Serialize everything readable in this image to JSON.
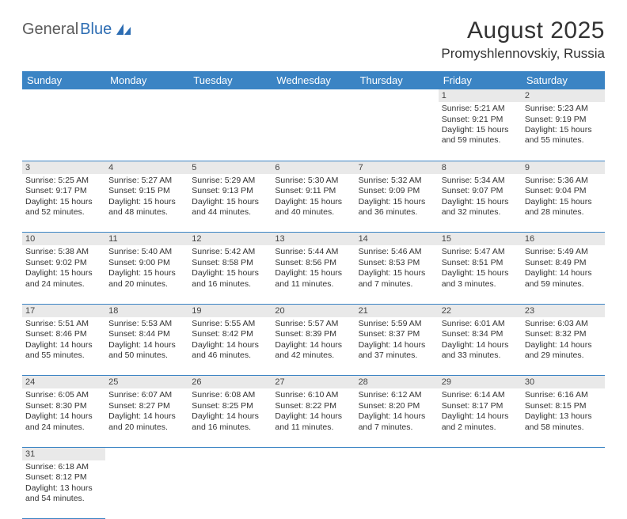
{
  "logo": {
    "part1": "General",
    "part2": "Blue"
  },
  "title": "August 2025",
  "location": "Promyshlennovskiy, Russia",
  "colors": {
    "header_bg": "#3b84c4",
    "header_fg": "#ffffff",
    "daynum_bg": "#e9e9e9",
    "row_divider": "#3b84c4",
    "text": "#333333",
    "logo_gray": "#5a5a5a",
    "logo_blue": "#2d6db3"
  },
  "weekdays": [
    "Sunday",
    "Monday",
    "Tuesday",
    "Wednesday",
    "Thursday",
    "Friday",
    "Saturday"
  ],
  "weeks": [
    [
      null,
      null,
      null,
      null,
      null,
      {
        "n": "1",
        "sunrise": "5:21 AM",
        "sunset": "9:21 PM",
        "day_h": "15",
        "day_m": "59"
      },
      {
        "n": "2",
        "sunrise": "5:23 AM",
        "sunset": "9:19 PM",
        "day_h": "15",
        "day_m": "55"
      }
    ],
    [
      {
        "n": "3",
        "sunrise": "5:25 AM",
        "sunset": "9:17 PM",
        "day_h": "15",
        "day_m": "52"
      },
      {
        "n": "4",
        "sunrise": "5:27 AM",
        "sunset": "9:15 PM",
        "day_h": "15",
        "day_m": "48"
      },
      {
        "n": "5",
        "sunrise": "5:29 AM",
        "sunset": "9:13 PM",
        "day_h": "15",
        "day_m": "44"
      },
      {
        "n": "6",
        "sunrise": "5:30 AM",
        "sunset": "9:11 PM",
        "day_h": "15",
        "day_m": "40"
      },
      {
        "n": "7",
        "sunrise": "5:32 AM",
        "sunset": "9:09 PM",
        "day_h": "15",
        "day_m": "36"
      },
      {
        "n": "8",
        "sunrise": "5:34 AM",
        "sunset": "9:07 PM",
        "day_h": "15",
        "day_m": "32"
      },
      {
        "n": "9",
        "sunrise": "5:36 AM",
        "sunset": "9:04 PM",
        "day_h": "15",
        "day_m": "28"
      }
    ],
    [
      {
        "n": "10",
        "sunrise": "5:38 AM",
        "sunset": "9:02 PM",
        "day_h": "15",
        "day_m": "24"
      },
      {
        "n": "11",
        "sunrise": "5:40 AM",
        "sunset": "9:00 PM",
        "day_h": "15",
        "day_m": "20"
      },
      {
        "n": "12",
        "sunrise": "5:42 AM",
        "sunset": "8:58 PM",
        "day_h": "15",
        "day_m": "16"
      },
      {
        "n": "13",
        "sunrise": "5:44 AM",
        "sunset": "8:56 PM",
        "day_h": "15",
        "day_m": "11"
      },
      {
        "n": "14",
        "sunrise": "5:46 AM",
        "sunset": "8:53 PM",
        "day_h": "15",
        "day_m": "7"
      },
      {
        "n": "15",
        "sunrise": "5:47 AM",
        "sunset": "8:51 PM",
        "day_h": "15",
        "day_m": "3"
      },
      {
        "n": "16",
        "sunrise": "5:49 AM",
        "sunset": "8:49 PM",
        "day_h": "14",
        "day_m": "59"
      }
    ],
    [
      {
        "n": "17",
        "sunrise": "5:51 AM",
        "sunset": "8:46 PM",
        "day_h": "14",
        "day_m": "55"
      },
      {
        "n": "18",
        "sunrise": "5:53 AM",
        "sunset": "8:44 PM",
        "day_h": "14",
        "day_m": "50"
      },
      {
        "n": "19",
        "sunrise": "5:55 AM",
        "sunset": "8:42 PM",
        "day_h": "14",
        "day_m": "46"
      },
      {
        "n": "20",
        "sunrise": "5:57 AM",
        "sunset": "8:39 PM",
        "day_h": "14",
        "day_m": "42"
      },
      {
        "n": "21",
        "sunrise": "5:59 AM",
        "sunset": "8:37 PM",
        "day_h": "14",
        "day_m": "37"
      },
      {
        "n": "22",
        "sunrise": "6:01 AM",
        "sunset": "8:34 PM",
        "day_h": "14",
        "day_m": "33"
      },
      {
        "n": "23",
        "sunrise": "6:03 AM",
        "sunset": "8:32 PM",
        "day_h": "14",
        "day_m": "29"
      }
    ],
    [
      {
        "n": "24",
        "sunrise": "6:05 AM",
        "sunset": "8:30 PM",
        "day_h": "14",
        "day_m": "24"
      },
      {
        "n": "25",
        "sunrise": "6:07 AM",
        "sunset": "8:27 PM",
        "day_h": "14",
        "day_m": "20"
      },
      {
        "n": "26",
        "sunrise": "6:08 AM",
        "sunset": "8:25 PM",
        "day_h": "14",
        "day_m": "16"
      },
      {
        "n": "27",
        "sunrise": "6:10 AM",
        "sunset": "8:22 PM",
        "day_h": "14",
        "day_m": "11"
      },
      {
        "n": "28",
        "sunrise": "6:12 AM",
        "sunset": "8:20 PM",
        "day_h": "14",
        "day_m": "7"
      },
      {
        "n": "29",
        "sunrise": "6:14 AM",
        "sunset": "8:17 PM",
        "day_h": "14",
        "day_m": "2"
      },
      {
        "n": "30",
        "sunrise": "6:16 AM",
        "sunset": "8:15 PM",
        "day_h": "13",
        "day_m": "58"
      }
    ],
    [
      {
        "n": "31",
        "sunrise": "6:18 AM",
        "sunset": "8:12 PM",
        "day_h": "13",
        "day_m": "54"
      },
      null,
      null,
      null,
      null,
      null,
      null
    ]
  ],
  "labels": {
    "sunrise": "Sunrise:",
    "sunset": "Sunset:",
    "daylight": "Daylight:",
    "hours": "hours",
    "and": "and",
    "minutes": "minutes."
  }
}
